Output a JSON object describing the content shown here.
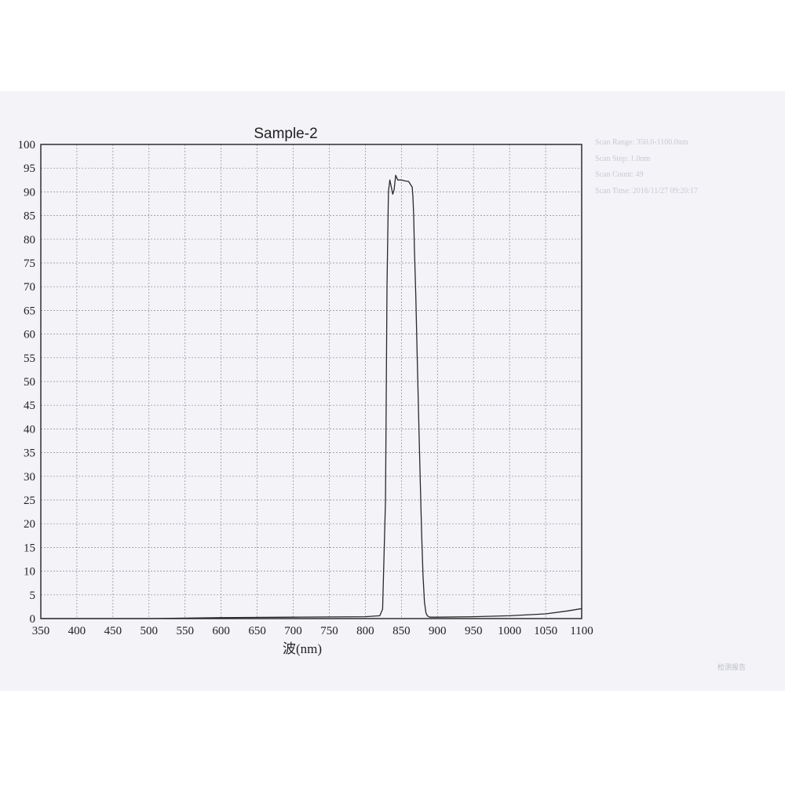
{
  "chart_data": {
    "type": "line",
    "title": "Sample-2",
    "xlabel": "波(nm)",
    "ylabel": "",
    "xlim": [
      350,
      1100
    ],
    "ylim": [
      0,
      100
    ],
    "x_ticks": [
      350,
      400,
      450,
      500,
      550,
      600,
      650,
      700,
      750,
      800,
      850,
      900,
      950,
      1000,
      1050,
      1100
    ],
    "y_ticks": [
      0,
      5,
      10,
      15,
      20,
      25,
      30,
      35,
      40,
      45,
      50,
      55,
      60,
      65,
      70,
      75,
      80,
      85,
      90,
      95,
      100
    ],
    "grid": true,
    "series": [
      {
        "x": [
          350,
          400,
          500,
          600,
          700,
          800,
          820,
          824,
          828,
          830,
          832,
          834,
          836,
          838,
          840,
          842,
          845,
          850,
          855,
          860,
          865,
          866,
          867,
          868,
          870,
          872,
          874,
          876,
          878,
          880,
          882,
          884,
          886,
          888,
          890,
          900,
          950,
          1000,
          1050,
          1080,
          1100
        ],
        "y": [
          0,
          0,
          0,
          0.2,
          0.3,
          0.4,
          0.6,
          2,
          25,
          70,
          90,
          92.5,
          91,
          89.5,
          90.5,
          93.5,
          92.5,
          92.5,
          92.3,
          92.2,
          91,
          89,
          85,
          78,
          68,
          55,
          42,
          30,
          18,
          9,
          3.5,
          1.2,
          0.6,
          0.4,
          0.3,
          0.3,
          0.4,
          0.6,
          1.0,
          1.6,
          2.1
        ]
      }
    ]
  },
  "scan_info": [
    "Scan Range: 350.0-1100.0nm",
    "Scan Step: 1.0nm",
    "Scan Count: 49",
    "Scan Time: 2016/11/27 09:20:17"
  ],
  "footer": "检测报告"
}
